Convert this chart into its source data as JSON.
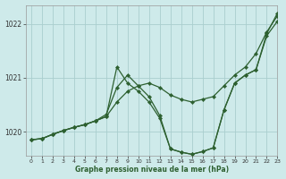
{
  "title": "Graphe pression niveau de la mer (hPa)",
  "background_color": "#ceeaea",
  "grid_color": "#aacece",
  "line_color": "#2d6030",
  "marker_color": "#2d6030",
  "xlim": [
    -0.5,
    23
  ],
  "ylim": [
    1019.55,
    1022.35
  ],
  "yticks": [
    1020,
    1021,
    1022
  ],
  "ytick_labels": [
    "1020",
    "1021",
    "1022"
  ],
  "xticks": [
    0,
    1,
    2,
    3,
    4,
    5,
    6,
    7,
    8,
    9,
    10,
    11,
    12,
    13,
    14,
    15,
    16,
    17,
    18,
    19,
    20,
    21,
    22,
    23
  ],
  "series": [
    {
      "x": [
        0,
        1,
        2,
        3,
        4,
        5,
        6,
        7,
        8,
        9,
        10,
        11,
        12,
        13,
        14,
        15,
        16,
        17,
        18,
        19,
        20,
        21,
        22,
        23
      ],
      "y": [
        1019.85,
        1019.87,
        1019.95,
        1020.02,
        1020.08,
        1020.13,
        1020.2,
        1020.28,
        1020.55,
        1020.75,
        1020.85,
        1020.9,
        1020.82,
        1020.68,
        1020.6,
        1020.55,
        1020.6,
        1020.65,
        1020.85,
        1021.05,
        1021.2,
        1021.45,
        1021.85,
        1022.15
      ]
    },
    {
      "x": [
        0,
        1,
        2,
        3,
        4,
        5,
        6,
        7,
        8,
        9,
        10,
        11,
        12,
        13,
        14,
        15,
        16,
        17,
        18,
        19,
        20,
        21,
        22,
        23
      ],
      "y": [
        1019.85,
        1019.87,
        1019.95,
        1020.02,
        1020.08,
        1020.13,
        1020.2,
        1020.28,
        1021.2,
        1020.9,
        1020.75,
        1020.55,
        1020.25,
        1019.68,
        1019.62,
        1019.58,
        1019.63,
        1019.7,
        1020.4,
        1020.9,
        1021.05,
        1021.15,
        1021.78,
        1022.05
      ]
    },
    {
      "x": [
        0,
        1,
        2,
        3,
        4,
        5,
        6,
        7,
        8,
        9,
        10,
        11,
        12,
        13,
        14,
        15,
        16,
        17,
        18,
        19,
        20,
        21,
        22,
        23
      ],
      "y": [
        1019.85,
        1019.87,
        1019.95,
        1020.02,
        1020.08,
        1020.13,
        1020.2,
        1020.32,
        1020.82,
        1021.05,
        1020.85,
        1020.65,
        1020.3,
        1019.68,
        1019.62,
        1019.58,
        1019.63,
        1019.7,
        1020.4,
        1020.9,
        1021.05,
        1021.15,
        1021.82,
        1022.2
      ]
    }
  ]
}
